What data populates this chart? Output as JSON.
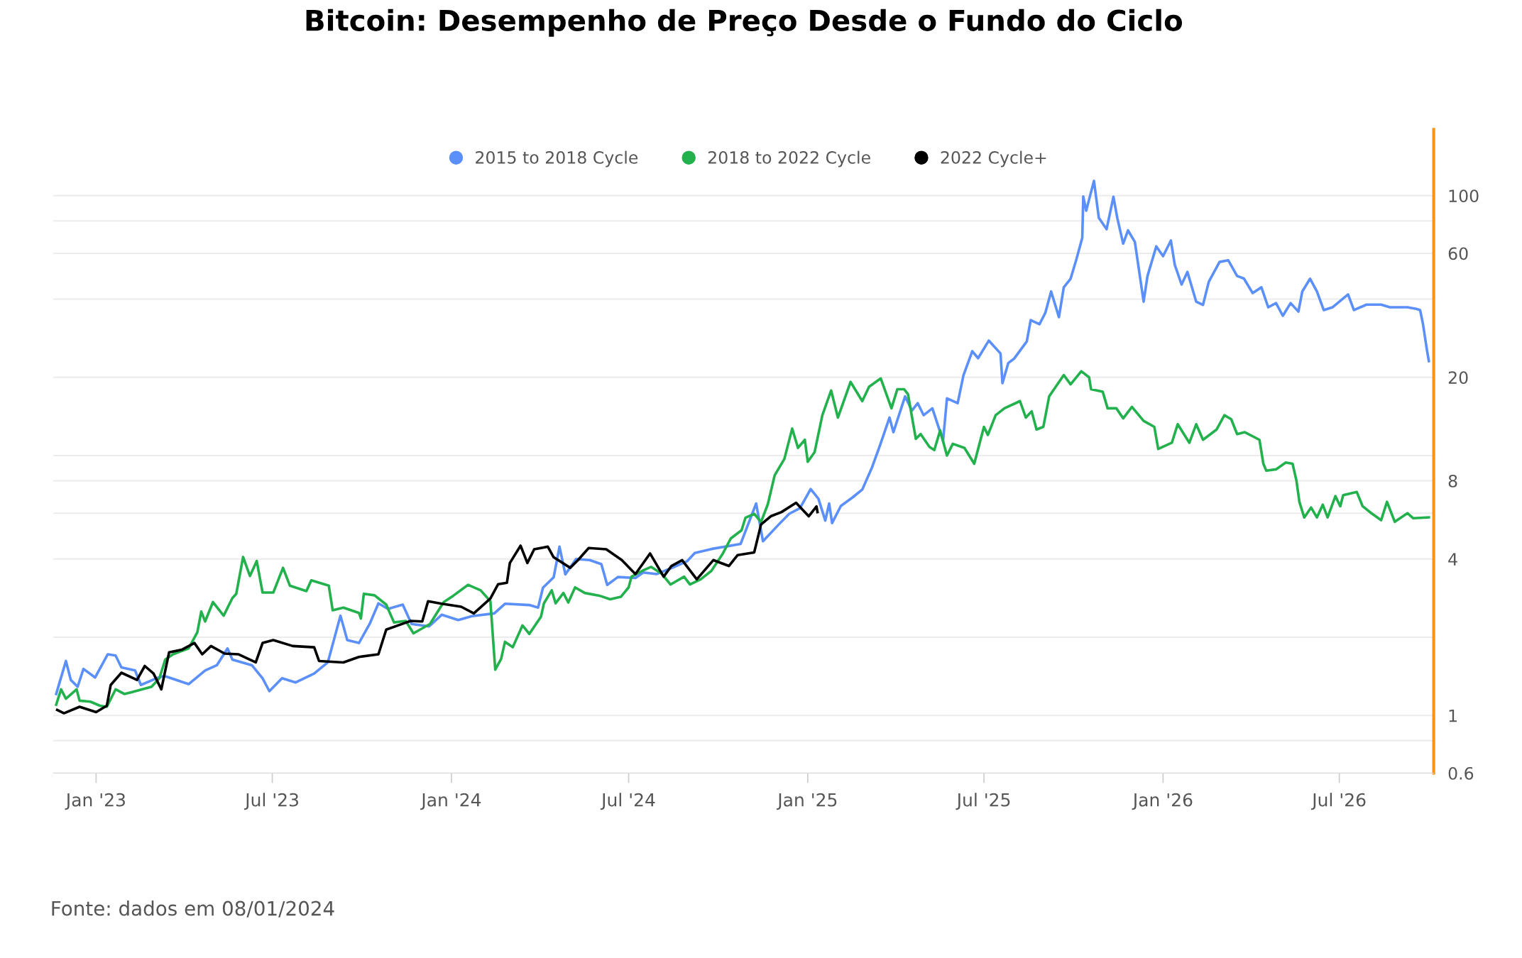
{
  "chart_data": {
    "type": "line",
    "title": "Bitcoin: Desempenho de Preço Desde o Fundo do Ciclo",
    "annotations": [
      "Fonte: dados em 08/01/2024"
    ],
    "log": "y",
    "grid": "y",
    "legend": "top",
    "marker": "none",
    "line_style": "solid",
    "xlim": [
      "2022-11-18",
      "2026-10-06"
    ],
    "xticks": [
      {
        "value": "2023-01-01",
        "label": "Jan '23"
      },
      {
        "value": "2023-07-01",
        "label": "Jul '23"
      },
      {
        "value": "2024-01-01",
        "label": "Jan '24"
      },
      {
        "value": "2024-07-01",
        "label": "Jul '24"
      },
      {
        "value": "2025-01-01",
        "label": "Jan '25"
      },
      {
        "value": "2025-07-01",
        "label": "Jul '25"
      },
      {
        "value": "2026-01-01",
        "label": "Jan '26"
      },
      {
        "value": "2026-07-01",
        "label": "Jul '26"
      }
    ],
    "ylim": [
      0.6,
      180
    ],
    "yticks": [
      0.6,
      {
        "value": 0.8,
        "label": null
      },
      1,
      {
        "value": 2,
        "label": null
      },
      4,
      {
        "value": 6,
        "label": null
      },
      8,
      {
        "value": 10,
        "label": null
      },
      20,
      {
        "value": 40,
        "label": null
      },
      60,
      {
        "value": 80,
        "label": null
      },
      100
    ],
    "series": [
      {
        "name": "2015 to 2018 Cycle",
        "color": "#5b8ff9",
        "x": [
          "2022-11-21",
          "2022-12-01",
          "2022-12-06",
          "2022-12-13",
          "2022-12-19",
          "2022-12-31",
          "2023-01-13",
          "2023-01-21",
          "2023-01-27",
          "2023-02-10",
          "2023-02-16",
          "2023-03-04",
          "2023-03-12",
          "2023-04-06",
          "2023-04-23",
          "2023-05-05",
          "2023-05-16",
          "2023-05-21",
          "2023-06-10",
          "2023-06-21",
          "2023-06-28",
          "2023-07-11",
          "2023-07-25",
          "2023-08-13",
          "2023-08-27",
          "2023-09-09",
          "2023-09-16",
          "2023-09-28",
          "2023-10-09",
          "2023-10-18",
          "2023-10-28",
          "2023-11-12",
          "2023-11-21",
          "2023-12-09",
          "2023-12-22",
          "2024-01-08",
          "2024-01-22",
          "2024-02-14",
          "2024-02-25",
          "2024-03-21",
          "2024-03-30",
          "2024-04-04",
          "2024-04-15",
          "2024-04-21",
          "2024-04-27",
          "2024-05-08",
          "2024-05-22",
          "2024-06-03",
          "2024-06-09",
          "2024-06-20",
          "2024-07-08",
          "2024-07-16",
          "2024-07-30",
          "2024-08-14",
          "2024-08-30",
          "2024-09-07",
          "2024-09-24",
          "2024-10-08",
          "2024-10-24",
          "2024-11-09",
          "2024-11-16",
          "2024-12-02",
          "2024-12-13",
          "2024-12-24",
          "2025-01-04",
          "2025-01-12",
          "2025-01-19",
          "2025-01-23",
          "2025-01-26",
          "2025-02-04",
          "2025-02-16",
          "2025-02-26",
          "2025-03-08",
          "2025-03-16",
          "2025-03-26",
          "2025-03-30",
          "2025-04-11",
          "2025-04-18",
          "2025-04-24",
          "2025-04-30",
          "2025-05-09",
          "2025-05-20",
          "2025-05-24",
          "2025-06-04",
          "2025-06-10",
          "2025-06-19",
          "2025-06-25",
          "2025-07-06",
          "2025-07-18",
          "2025-07-20",
          "2025-07-26",
          "2025-08-01",
          "2025-08-14",
          "2025-08-18",
          "2025-08-27",
          "2025-09-02",
          "2025-09-08",
          "2025-09-16",
          "2025-09-21",
          "2025-09-28",
          "2025-10-04",
          "2025-10-10",
          "2025-10-11",
          "2025-10-14",
          "2025-10-22",
          "2025-10-27",
          "2025-11-04",
          "2025-11-11",
          "2025-11-15",
          "2025-11-21",
          "2025-11-26",
          "2025-12-03",
          "2025-12-12",
          "2025-12-16",
          "2025-12-25",
          "2026-01-01",
          "2026-01-09",
          "2026-01-13",
          "2026-01-20",
          "2026-01-26",
          "2026-02-04",
          "2026-02-11",
          "2026-02-17",
          "2026-02-28",
          "2026-03-09",
          "2026-03-18",
          "2026-03-25",
          "2026-04-03",
          "2026-04-12",
          "2026-04-19",
          "2026-04-27",
          "2026-05-04",
          "2026-05-12",
          "2026-05-20",
          "2026-05-24",
          "2026-06-01",
          "2026-06-08",
          "2026-06-15",
          "2026-06-24",
          "2026-07-10",
          "2026-07-16",
          "2026-07-29",
          "2026-08-13",
          "2026-08-22",
          "2026-09-09",
          "2026-09-18",
          "2026-09-22",
          "2026-09-25",
          "2026-09-29",
          "2026-10-01"
        ],
        "values": [
          1.21,
          1.62,
          1.37,
          1.29,
          1.51,
          1.4,
          1.72,
          1.7,
          1.53,
          1.49,
          1.31,
          1.39,
          1.42,
          1.32,
          1.49,
          1.56,
          1.81,
          1.64,
          1.56,
          1.39,
          1.24,
          1.39,
          1.34,
          1.45,
          1.6,
          2.42,
          1.95,
          1.9,
          2.25,
          2.7,
          2.57,
          2.67,
          2.25,
          2.2,
          2.44,
          2.33,
          2.41,
          2.47,
          2.69,
          2.66,
          2.6,
          3.1,
          3.4,
          4.46,
          3.49,
          4.0,
          3.96,
          3.82,
          3.18,
          3.41,
          3.38,
          3.55,
          3.5,
          3.69,
          3.92,
          4.22,
          4.37,
          4.46,
          4.57,
          6.54,
          4.68,
          5.42,
          5.97,
          6.27,
          7.43,
          6.82,
          5.62,
          6.54,
          5.5,
          6.4,
          6.9,
          7.4,
          9.0,
          10.9,
          14.0,
          12.3,
          16.9,
          14.9,
          15.9,
          14.3,
          15.2,
          11.4,
          16.6,
          15.9,
          20.4,
          25.2,
          23.7,
          27.7,
          24.7,
          19.0,
          22.7,
          23.6,
          27.5,
          33.2,
          32.0,
          35.4,
          42.8,
          34.1,
          44.4,
          47.9,
          57.0,
          68.9,
          99.3,
          87.5,
          114,
          82.2,
          74.3,
          99,
          82,
          65.4,
          73.5,
          66.4,
          39.1,
          49.1,
          63.8,
          58.5,
          67.2,
          54.2,
          45.5,
          50.9,
          39.1,
          38.0,
          46.7,
          55.6,
          56.4,
          49.1,
          48.0,
          42.2,
          44.4,
          37.2,
          38.6,
          34.5,
          38.6,
          35.8,
          42.8,
          47.9,
          42.8,
          36.3,
          37.2,
          41.7,
          36.3,
          38.1,
          38.1,
          37.2,
          37.2,
          36.7,
          36.3,
          32.0,
          25.5,
          23.1
        ]
      },
      {
        "name": "2018 to 2022 Cycle",
        "color": "#22b14c",
        "x": [
          "2022-11-21",
          "2022-11-26",
          "2022-12-01",
          "2022-12-12",
          "2022-12-15",
          "2022-12-26",
          "2023-01-05",
          "2023-01-12",
          "2023-01-21",
          "2023-01-30",
          "2023-02-07",
          "2023-02-27",
          "2023-03-07",
          "2023-03-13",
          "2023-03-21",
          "2023-04-06",
          "2023-04-15",
          "2023-04-19",
          "2023-04-23",
          "2023-05-01",
          "2023-05-12",
          "2023-05-21",
          "2023-05-25",
          "2023-06-01",
          "2023-06-08",
          "2023-06-15",
          "2023-06-21",
          "2023-07-02",
          "2023-07-12",
          "2023-07-19",
          "2023-08-05",
          "2023-08-10",
          "2023-08-28",
          "2023-09-01",
          "2023-09-12",
          "2023-09-28",
          "2023-09-30",
          "2023-10-03",
          "2023-10-14",
          "2023-10-26",
          "2023-11-03",
          "2023-11-15",
          "2023-11-23",
          "2023-12-10",
          "2023-12-24",
          "2024-01-03",
          "2024-01-18",
          "2024-01-31",
          "2024-02-10",
          "2024-02-15",
          "2024-02-21",
          "2024-02-25",
          "2024-03-04",
          "2024-03-14",
          "2024-03-21",
          "2024-04-02",
          "2024-04-05",
          "2024-04-13",
          "2024-04-17",
          "2024-04-25",
          "2024-04-30",
          "2024-05-07",
          "2024-05-17",
          "2024-06-01",
          "2024-06-12",
          "2024-06-23",
          "2024-07-01",
          "2024-07-04",
          "2024-07-15",
          "2024-07-24",
          "2024-08-04",
          "2024-08-13",
          "2024-08-27",
          "2024-09-02",
          "2024-09-13",
          "2024-09-24",
          "2024-10-05",
          "2024-10-14",
          "2024-10-25",
          "2024-10-29",
          "2024-11-07",
          "2024-11-14",
          "2024-11-21",
          "2024-11-28",
          "2024-12-08",
          "2024-12-16",
          "2024-12-22",
          "2024-12-29",
          "2025-01-01",
          "2025-01-08",
          "2025-01-16",
          "2025-01-25",
          "2025-02-01",
          "2025-02-14",
          "2025-02-26",
          "2025-03-05",
          "2025-03-17",
          "2025-03-28",
          "2025-04-03",
          "2025-04-10",
          "2025-04-14",
          "2025-04-22",
          "2025-04-27",
          "2025-05-06",
          "2025-05-11",
          "2025-05-17",
          "2025-05-24",
          "2025-05-30",
          "2025-06-11",
          "2025-06-21",
          "2025-07-01",
          "2025-07-05",
          "2025-07-13",
          "2025-07-22",
          "2025-08-07",
          "2025-08-13",
          "2025-08-19",
          "2025-08-24",
          "2025-08-31",
          "2025-09-06",
          "2025-09-21",
          "2025-09-28",
          "2025-10-09",
          "2025-10-17",
          "2025-10-19",
          "2025-10-31",
          "2025-11-05",
          "2025-11-14",
          "2025-11-21",
          "2025-11-30",
          "2025-12-12",
          "2025-12-23",
          "2025-12-27",
          "2026-01-10",
          "2026-01-16",
          "2026-01-28",
          "2026-02-04",
          "2026-02-11",
          "2026-02-25",
          "2026-03-05",
          "2026-03-12",
          "2026-03-18",
          "2026-03-26",
          "2026-04-10",
          "2026-04-14",
          "2026-04-17",
          "2026-04-27",
          "2026-05-07",
          "2026-05-14",
          "2026-05-18",
          "2026-05-21",
          "2026-05-26",
          "2026-06-02",
          "2026-06-08",
          "2026-06-14",
          "2026-06-19",
          "2026-06-27",
          "2026-07-02",
          "2026-07-05",
          "2026-07-19",
          "2026-07-25",
          "2026-08-03",
          "2026-08-13",
          "2026-08-19",
          "2026-08-27",
          "2026-09-09",
          "2026-09-15",
          "2026-10-01"
        ],
        "values": [
          1.1,
          1.26,
          1.16,
          1.26,
          1.14,
          1.13,
          1.09,
          1.08,
          1.26,
          1.21,
          1.23,
          1.29,
          1.39,
          1.64,
          1.72,
          1.81,
          2.09,
          2.51,
          2.3,
          2.73,
          2.42,
          2.83,
          2.94,
          4.07,
          3.44,
          3.93,
          2.97,
          2.97,
          3.7,
          3.16,
          3.01,
          3.31,
          3.16,
          2.54,
          2.6,
          2.48,
          2.36,
          2.94,
          2.9,
          2.67,
          2.28,
          2.31,
          2.07,
          2.25,
          2.73,
          2.89,
          3.18,
          3.03,
          2.75,
          1.5,
          1.65,
          1.92,
          1.83,
          2.22,
          2.06,
          2.4,
          2.7,
          3.03,
          2.7,
          2.96,
          2.72,
          3.11,
          2.96,
          2.89,
          2.8,
          2.86,
          3.11,
          3.42,
          3.6,
          3.73,
          3.51,
          3.19,
          3.42,
          3.19,
          3.34,
          3.6,
          4.15,
          4.8,
          5.16,
          5.76,
          5.97,
          5.55,
          6.5,
          8.39,
          9.71,
          12.7,
          10.7,
          11.5,
          9.46,
          10.3,
          14.3,
          17.8,
          14.0,
          19.2,
          16.2,
          18.4,
          19.8,
          15.2,
          18.0,
          18.0,
          17.2,
          11.6,
          12.1,
          10.8,
          10.5,
          12.5,
          10.0,
          11.1,
          10.7,
          9.3,
          12.9,
          12.0,
          14.3,
          15.2,
          16.2,
          14.0,
          14.8,
          12.6,
          12.9,
          16.9,
          20.4,
          18.8,
          21.1,
          20.0,
          18.0,
          17.6,
          15.2,
          15.2,
          13.9,
          15.4,
          13.6,
          12.9,
          10.6,
          11.2,
          13.2,
          11.2,
          13.2,
          11.5,
          12.6,
          14.3,
          13.8,
          12.1,
          12.3,
          11.5,
          9.3,
          8.75,
          8.85,
          9.4,
          9.3,
          8.0,
          6.64,
          5.78,
          6.31,
          5.78,
          6.47,
          5.78,
          6.98,
          6.38,
          7.04,
          7.24,
          6.38,
          6.0,
          5.64,
          6.64,
          5.56,
          6.0,
          5.74,
          5.78
        ]
      },
      {
        "name": "2022 Cycle+",
        "color": "#000000",
        "x": [
          "2022-11-22",
          "2022-11-29",
          "2022-12-15",
          "2023-01-01",
          "2023-01-12",
          "2023-01-16",
          "2023-01-27",
          "2023-02-12",
          "2023-02-20",
          "2023-03-01",
          "2023-03-09",
          "2023-03-17",
          "2023-03-30",
          "2023-04-12",
          "2023-04-20",
          "2023-04-29",
          "2023-05-13",
          "2023-05-27",
          "2023-06-14",
          "2023-06-21",
          "2023-07-02",
          "2023-07-22",
          "2023-08-13",
          "2023-08-18",
          "2023-09-12",
          "2023-09-28",
          "2023-10-18",
          "2023-10-26",
          "2023-11-07",
          "2023-11-20",
          "2023-12-02",
          "2023-12-08",
          "2023-12-22",
          "2024-01-11",
          "2024-01-24",
          "2024-02-10",
          "2024-02-18",
          "2024-02-27",
          "2024-03-01",
          "2024-03-12",
          "2024-03-19",
          "2024-03-26",
          "2024-04-09",
          "2024-04-15",
          "2024-05-02",
          "2024-05-10",
          "2024-05-21",
          "2024-06-08",
          "2024-06-24",
          "2024-07-08",
          "2024-07-23",
          "2024-08-06",
          "2024-08-14",
          "2024-08-25",
          "2024-09-09",
          "2024-09-26",
          "2024-10-12",
          "2024-10-21",
          "2024-11-07",
          "2024-11-14",
          "2024-11-24",
          "2024-12-05",
          "2024-12-20",
          "2025-01-02",
          "2025-01-10",
          "2025-01-11"
        ],
        "values": [
          1.05,
          1.02,
          1.08,
          1.03,
          1.09,
          1.31,
          1.46,
          1.37,
          1.55,
          1.45,
          1.26,
          1.75,
          1.79,
          1.9,
          1.72,
          1.85,
          1.73,
          1.72,
          1.6,
          1.9,
          1.95,
          1.85,
          1.83,
          1.62,
          1.6,
          1.68,
          1.72,
          2.14,
          2.22,
          2.31,
          2.3,
          2.75,
          2.69,
          2.62,
          2.47,
          2.82,
          3.2,
          3.24,
          3.86,
          4.5,
          3.86,
          4.36,
          4.46,
          4.06,
          3.7,
          3.96,
          4.41,
          4.36,
          3.96,
          3.5,
          4.2,
          3.42,
          3.76,
          3.96,
          3.34,
          3.96,
          3.76,
          4.14,
          4.24,
          5.43,
          5.84,
          6.06,
          6.58,
          5.84,
          6.37,
          6.06
        ]
      }
    ]
  }
}
